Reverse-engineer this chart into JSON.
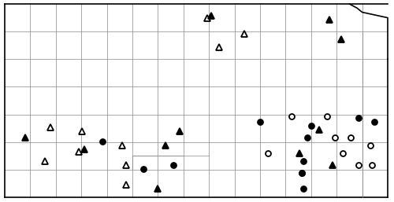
{
  "figsize": [
    5.0,
    2.57
  ],
  "dpi": 100,
  "xlim": [
    0,
    500
  ],
  "ylim": [
    0,
    257
  ],
  "open_circles": [
    [
      340,
      195
    ],
    [
      425,
      175
    ],
    [
      383,
      220
    ],
    [
      370,
      148
    ],
    [
      415,
      148
    ],
    [
      435,
      195
    ],
    [
      445,
      175
    ],
    [
      455,
      210
    ],
    [
      470,
      185
    ],
    [
      472,
      210
    ]
  ],
  "black_circles": [
    [
      330,
      155
    ],
    [
      395,
      160
    ],
    [
      475,
      155
    ],
    [
      390,
      175
    ],
    [
      455,
      150
    ],
    [
      182,
      215
    ],
    [
      220,
      210
    ],
    [
      385,
      205
    ],
    [
      383,
      220
    ],
    [
      385,
      240
    ],
    [
      130,
      180
    ]
  ],
  "open_triangles": [
    [
      263,
      23
    ],
    [
      278,
      60
    ],
    [
      310,
      43
    ],
    [
      104,
      167
    ],
    [
      155,
      185
    ],
    [
      160,
      210
    ],
    [
      160,
      235
    ],
    [
      64,
      162
    ],
    [
      100,
      193
    ],
    [
      57,
      205
    ]
  ],
  "black_triangles": [
    [
      268,
      20
    ],
    [
      418,
      25
    ],
    [
      433,
      50
    ],
    [
      32,
      175
    ],
    [
      228,
      167
    ],
    [
      107,
      190
    ],
    [
      210,
      185
    ],
    [
      405,
      165
    ],
    [
      422,
      210
    ],
    [
      200,
      240
    ],
    [
      380,
      195
    ]
  ],
  "background_color": "#ffffff",
  "marker_size_circle": 5,
  "marker_size_triangle": 6
}
